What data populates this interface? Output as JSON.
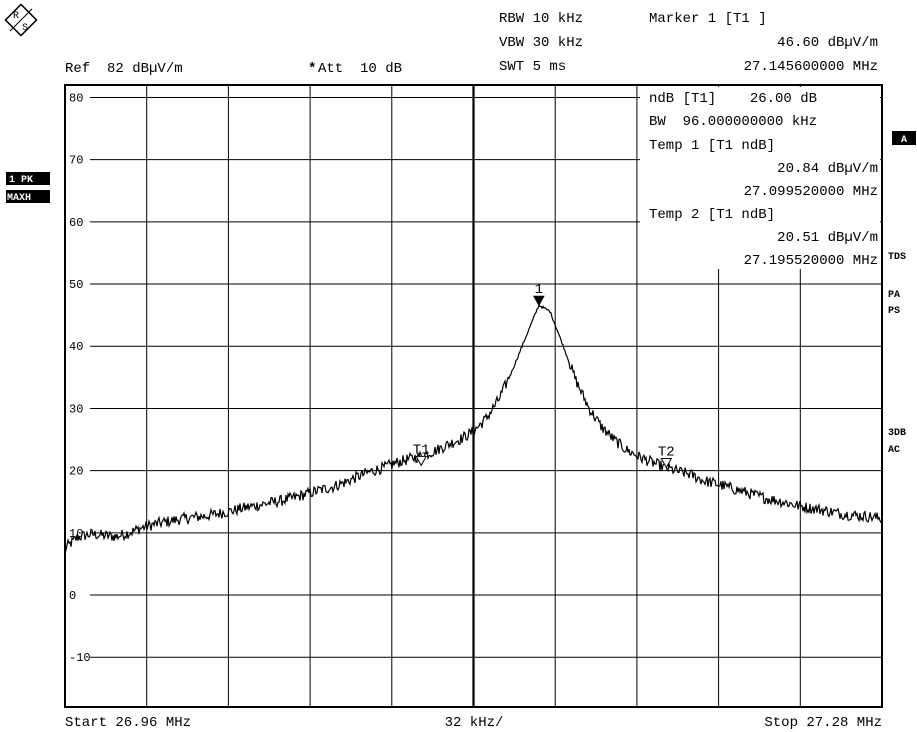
{
  "header": {
    "rbw": "RBW 10 kHz",
    "vbw": "VBW 30 kHz",
    "swt": "SWT 5 ms",
    "ref": "Ref  82 dBµV/m",
    "att_star": "*",
    "att": "Att  10 dB",
    "marker_title": "Marker 1 [T1 ]",
    "marker_level": "46.60 dBµV/m",
    "marker_freq": "27.145600000 MHz"
  },
  "marker_table": {
    "ndb": "ndB [T1]    26.00 dB",
    "bw": "BW  96.000000000 kHz",
    "temp1_title": "Temp 1 [T1 ndB]",
    "temp1_level": "20.84 dBµV/m",
    "temp1_freq": "27.099520000 MHz",
    "temp2_title": "Temp 2 [T1 ndB]",
    "temp2_level": "20.51 dBµV/m",
    "temp2_freq": "27.195520000 MHz"
  },
  "left_labels": {
    "trace_1": "1 PK",
    "trace_2": "MAXH"
  },
  "right_labels": {
    "a": "A",
    "tds": "TDS",
    "pa": "PA",
    "ps": "PS",
    "db3": "3DB",
    "ac": "AC"
  },
  "footer": {
    "start": "Start 26.96 MHz",
    "span": "32 kHz/",
    "stop": "Stop 27.28 MHz"
  },
  "chart_data": {
    "type": "line",
    "title": "",
    "xlabel": "",
    "ylabel": "",
    "xlim": [
      26.96,
      27.28
    ],
    "ylim": [
      -18,
      82
    ],
    "x_unit": "MHz",
    "y_unit": "dBµV/m",
    "y_ticks": [
      80,
      70,
      60,
      50,
      40,
      30,
      20,
      10,
      0,
      -10
    ],
    "y_tick_labels": [
      "80",
      "70",
      "60",
      "50",
      "40",
      "30",
      "20",
      "10",
      "0",
      "-10"
    ],
    "x_divisions": 10,
    "grid": true,
    "series": [
      {
        "x": [
          26.96,
          26.965,
          26.97,
          26.975,
          26.98,
          26.985,
          26.99,
          26.995,
          27.0,
          27.005,
          27.01,
          27.015,
          27.02,
          27.025,
          27.03,
          27.035,
          27.04,
          27.045,
          27.05,
          27.055,
          27.06,
          27.065,
          27.07,
          27.075,
          27.08,
          27.085,
          27.09,
          27.095,
          27.1,
          27.105,
          27.11,
          27.115,
          27.12,
          27.125,
          27.13,
          27.135,
          27.14,
          27.1456,
          27.15,
          27.155,
          27.16,
          27.165,
          27.17,
          27.175,
          27.18,
          27.185,
          27.19,
          27.195,
          27.2,
          27.205,
          27.21,
          27.215,
          27.22,
          27.225,
          27.23,
          27.235,
          27.24,
          27.245,
          27.25,
          27.255,
          27.26,
          27.265,
          27.27,
          27.275,
          27.28
        ],
        "values": [
          7.5,
          9.3,
          9.8,
          9.6,
          9.4,
          10.0,
          10.8,
          11.4,
          11.8,
          12.2,
          12.5,
          12.7,
          13.1,
          13.5,
          14.0,
          14.4,
          14.8,
          15.2,
          15.7,
          16.3,
          16.9,
          17.4,
          18.2,
          19.1,
          19.9,
          20.5,
          21.3,
          21.9,
          22.4,
          23.2,
          24.2,
          25.1,
          26.3,
          28.4,
          31.5,
          35.9,
          41.0,
          46.6,
          45.6,
          40.2,
          34.6,
          30.2,
          27.1,
          25.0,
          23.3,
          22.2,
          21.3,
          20.5,
          19.9,
          19.4,
          18.4,
          17.9,
          17.3,
          16.7,
          16.1,
          15.5,
          15.1,
          14.6,
          14.1,
          13.8,
          13.4,
          13.0,
          12.8,
          12.6,
          12.3
        ]
      }
    ],
    "markers": [
      {
        "label": "1",
        "x": 27.1456,
        "y": 46.6,
        "style": "filled"
      },
      {
        "label": "T1",
        "x": 27.09952,
        "y": 20.84,
        "style": "hollow"
      },
      {
        "label": "T2",
        "x": 27.19552,
        "y": 20.51,
        "style": "hollow"
      }
    ]
  }
}
